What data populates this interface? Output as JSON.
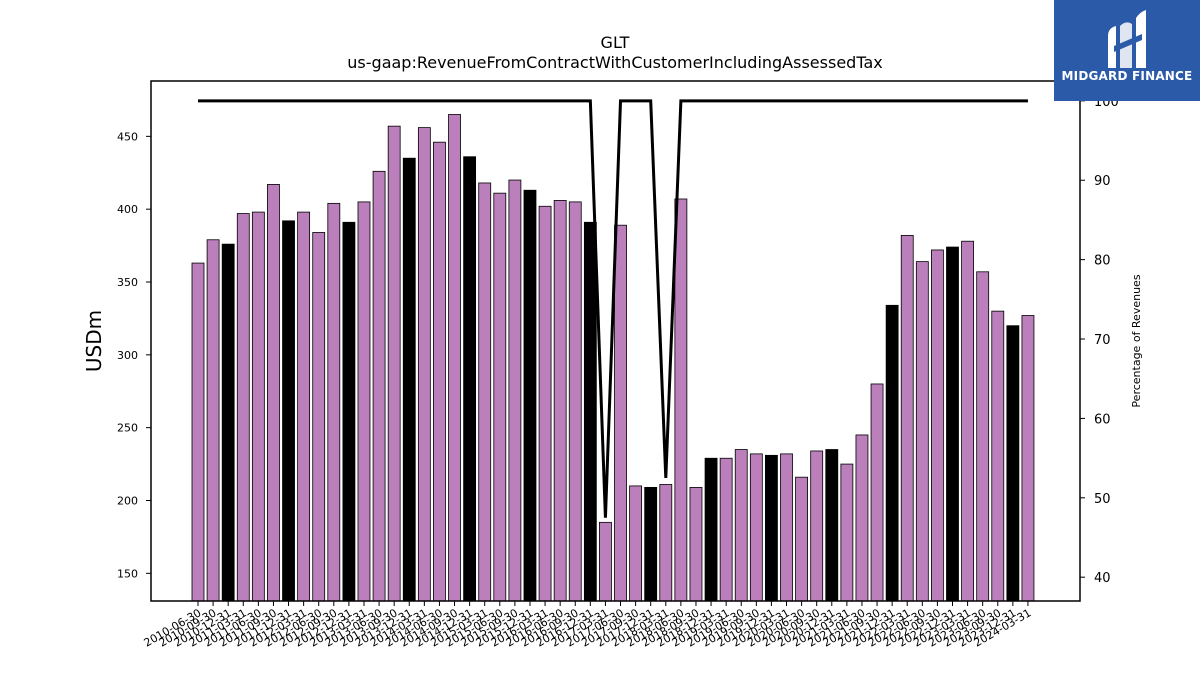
{
  "chart_data": {
    "type": "bar",
    "title": "GLT",
    "subtitle": "us-gaap:RevenueFromContractWithCustomerIncludingAssessedTax",
    "ylabel": "USDm",
    "y2label": "Percentage of Revenues",
    "ylim": [
      131,
      488
    ],
    "y2lim": [
      37,
      102.5
    ],
    "yticks": [
      150,
      200,
      250,
      300,
      350,
      400,
      450
    ],
    "y2ticks": [
      40,
      50,
      60,
      70,
      80,
      90,
      100
    ],
    "grid": false,
    "colors": {
      "quarter": "#bb7fbc",
      "annual": "#000000",
      "line": "#000000"
    },
    "categories": [
      "2010-06-30",
      "2010-09-30",
      "2010-12-31",
      "2011-03-31",
      "2011-06-30",
      "2011-09-30",
      "2011-12-31",
      "2012-03-31",
      "2012-06-30",
      "2012-09-30",
      "2012-12-31",
      "2013-03-31",
      "2013-06-30",
      "2013-09-30",
      "2013-12-31",
      "2014-03-31",
      "2014-06-30",
      "2014-09-30",
      "2014-12-31",
      "2015-03-31",
      "2015-06-30",
      "2015-09-30",
      "2015-12-31",
      "2016-03-31",
      "2016-06-30",
      "2016-09-30",
      "2016-12-31",
      "2017-03-31",
      "2017-06-30",
      "2017-09-30",
      "2017-12-31",
      "2018-03-31",
      "2018-06-30",
      "2018-09-30",
      "2018-12-31",
      "2019-03-31",
      "2019-06-30",
      "2019-09-30",
      "2019-12-31",
      "2020-03-31",
      "2020-06-30",
      "2020-09-30",
      "2020-12-31",
      "2021-03-31",
      "2021-06-30",
      "2021-09-30",
      "2021-12-31",
      "2022-03-31",
      "2022-06-30",
      "2022-09-30",
      "2022-12-31",
      "2023-03-31",
      "2023-06-30",
      "2023-09-30",
      "2023-12-31",
      "2024-03-31"
    ],
    "xticklabels": [
      "2010-06-30",
      "2010-09-30",
      "2010-12-31",
      "2011-03-31",
      "2011-06-30",
      "2011-09-30",
      "2011-12-31",
      "2012-03-31",
      "2012-06-30",
      "2012-09-30",
      "2012-12-31",
      "2013-03-31",
      "2013-06-30",
      "2013-09-30",
      "2013-12-31",
      "2014-03-31",
      "2014-06-30",
      "2014-09-30",
      "2014-12-31",
      "2015-03-31",
      "2015-06-30",
      "2015-09-30",
      "2015-12-31",
      "2016-03-31",
      "2016-06-30",
      "2016-09-30",
      "2016-12-31",
      "2017-03-31",
      "2017-06-30",
      "2017-09-30",
      "2017-12-31",
      "2018-03-31",
      "2018-06-30",
      "2018-09-30",
      "2018-12-31",
      "2019-03-31",
      "2019-06-30",
      "2019-09-30",
      "2019-12-31",
      "2020-03-31",
      "2020-06-30",
      "2020-09-30",
      "2020-12-31",
      "2021-03-31",
      "2021-06-30",
      "2021-09-30",
      "2021-12-31",
      "2022-03-31",
      "2022-06-30",
      "2022-09-30",
      "2022-12-31",
      "2023-03-31",
      "2023-06-30",
      "2023-09-30",
      "2023-12-31",
      "2024-03-31"
    ],
    "series": [
      {
        "type": "bar",
        "values": [
          363,
          379,
          376,
          397,
          398,
          417,
          392,
          398,
          384,
          404,
          391,
          405,
          426,
          457,
          435,
          456,
          446,
          465,
          436,
          418,
          411,
          420,
          413,
          402,
          406,
          405,
          391,
          185,
          389,
          210,
          209,
          211,
          407,
          209,
          229,
          229,
          235,
          232,
          231,
          232,
          216,
          234,
          235,
          225,
          245,
          280,
          334,
          382,
          364,
          372,
          374,
          378,
          357,
          330,
          320,
          327
        ],
        "annual": [
          false,
          false,
          true,
          false,
          false,
          false,
          true,
          false,
          false,
          false,
          true,
          false,
          false,
          false,
          true,
          false,
          false,
          false,
          true,
          false,
          false,
          false,
          true,
          false,
          false,
          false,
          true,
          false,
          false,
          false,
          true,
          false,
          false,
          false,
          true,
          false,
          false,
          false,
          true,
          false,
          false,
          false,
          true,
          false,
          false,
          false,
          true,
          false,
          false,
          false,
          true,
          false,
          false,
          false,
          true,
          false
        ]
      },
      {
        "type": "line",
        "axis": "right",
        "values": [
          100,
          100,
          100,
          100,
          100,
          100,
          100,
          100,
          100,
          100,
          100,
          100,
          100,
          100,
          100,
          100,
          100,
          100,
          100,
          100,
          100,
          100,
          100,
          100,
          100,
          100,
          100,
          47.5,
          100,
          100,
          100,
          52.5,
          100,
          100,
          100,
          100,
          100,
          100,
          100,
          100,
          100,
          100,
          100,
          100,
          100,
          100,
          100,
          100,
          100,
          100,
          100,
          100,
          100,
          100,
          100,
          100
        ]
      }
    ]
  },
  "logo": {
    "text": "MIDGARD FINANCE",
    "icon": "midgard-logo-icon"
  }
}
